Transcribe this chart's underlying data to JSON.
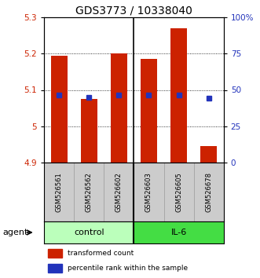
{
  "title": "GDS3773 / 10338040",
  "samples": [
    "GSM526561",
    "GSM526562",
    "GSM526602",
    "GSM526603",
    "GSM526605",
    "GSM526678"
  ],
  "bar_bottoms": [
    4.9,
    4.9,
    4.9,
    4.9,
    4.9,
    4.9
  ],
  "bar_tops": [
    5.195,
    5.075,
    5.2,
    5.185,
    5.27,
    4.945
  ],
  "percentile_values": [
    5.085,
    5.08,
    5.086,
    5.086,
    5.086,
    5.077
  ],
  "ylim_left": [
    4.9,
    5.3
  ],
  "ylim_right": [
    0,
    100
  ],
  "yticks_left": [
    4.9,
    5.0,
    5.1,
    5.2,
    5.3
  ],
  "ytick_labels_left": [
    "4.9",
    "5",
    "5.1",
    "5.2",
    "5.3"
  ],
  "yticks_right": [
    0,
    25,
    50,
    75,
    100
  ],
  "ytick_labels_right": [
    "0",
    "25",
    "50",
    "75",
    "100%"
  ],
  "bar_color": "#cc2200",
  "blue_color": "#2233bb",
  "bar_width": 0.55,
  "agent_label": "agent",
  "legend_red": "transformed count",
  "legend_blue": "percentile rank within the sample",
  "bg_color": "#ffffff",
  "plot_bg": "#ffffff",
  "label_area_bg": "#cccccc",
  "ctrl_color": "#bbffbb",
  "il6_color": "#44dd44",
  "title_fontsize": 10,
  "tick_fontsize": 7.5,
  "sample_fontsize": 6,
  "agent_fontsize": 8,
  "legend_fontsize": 6.5
}
